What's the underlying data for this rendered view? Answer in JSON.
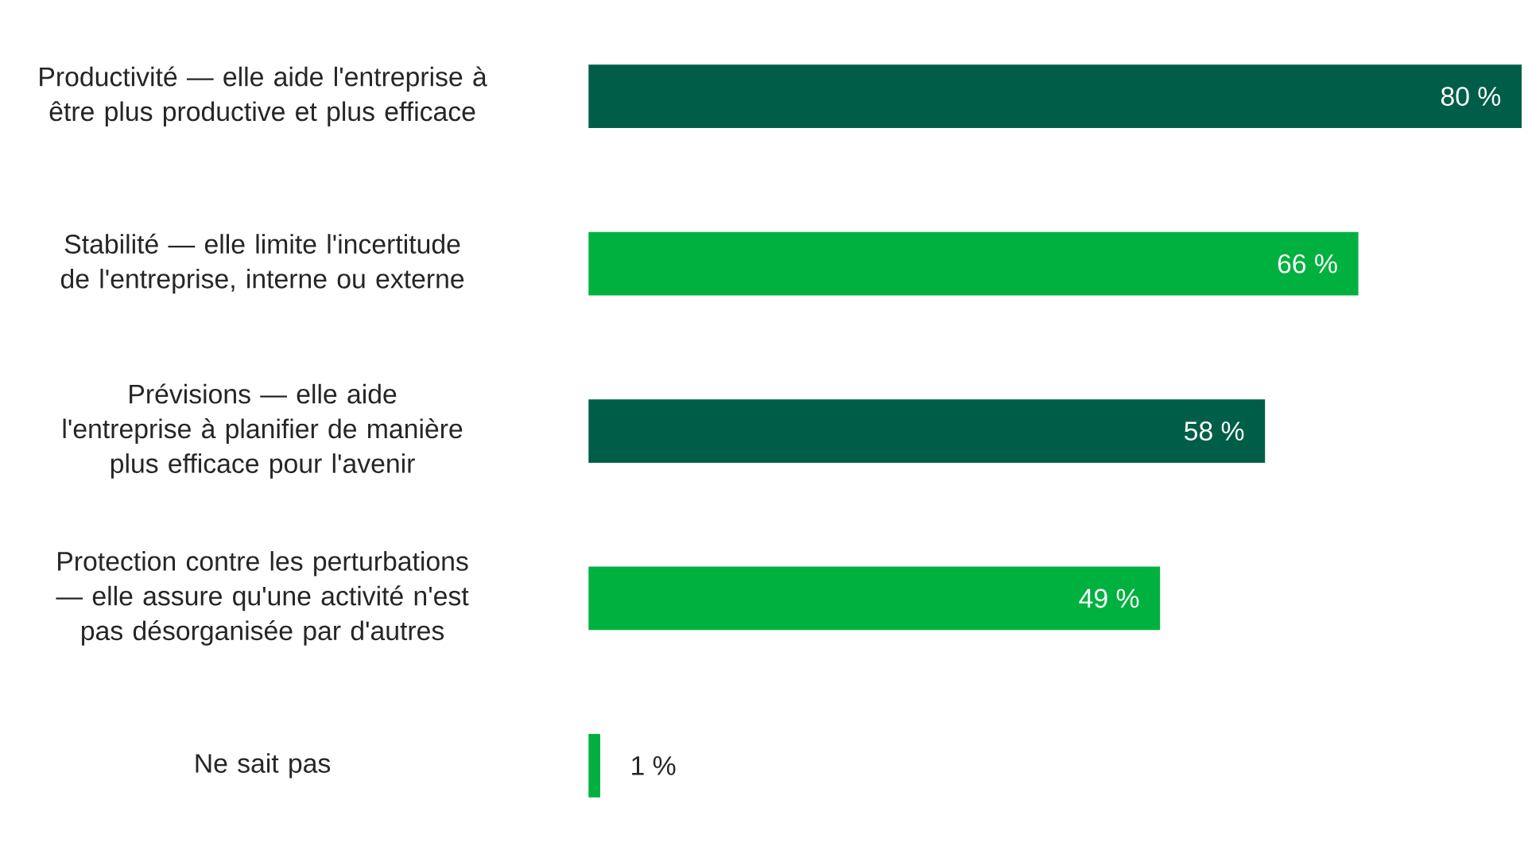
{
  "chart_data": {
    "type": "bar",
    "orientation": "horizontal",
    "categories": [
      "Productivité — elle aide l'entreprise à être plus productive et plus efficace",
      "Stabilité — elle limite l'incertitude de l'entreprise, interne ou externe",
      "Prévisions — elle aide l'entreprise à planifier de manière plus efficace pour l'avenir",
      "Protection contre les perturbations — elle assure qu'une activité n'est pas désorganisée par d'autres",
      "Ne sait pas"
    ],
    "values": [
      80,
      66,
      58,
      49,
      1
    ],
    "colors": [
      "#005e48",
      "#00b140",
      "#005e48",
      "#00b140",
      "#00b140"
    ],
    "value_labels": [
      "80 %",
      "66 %",
      "58 %",
      "49 %",
      "1 %"
    ]
  }
}
